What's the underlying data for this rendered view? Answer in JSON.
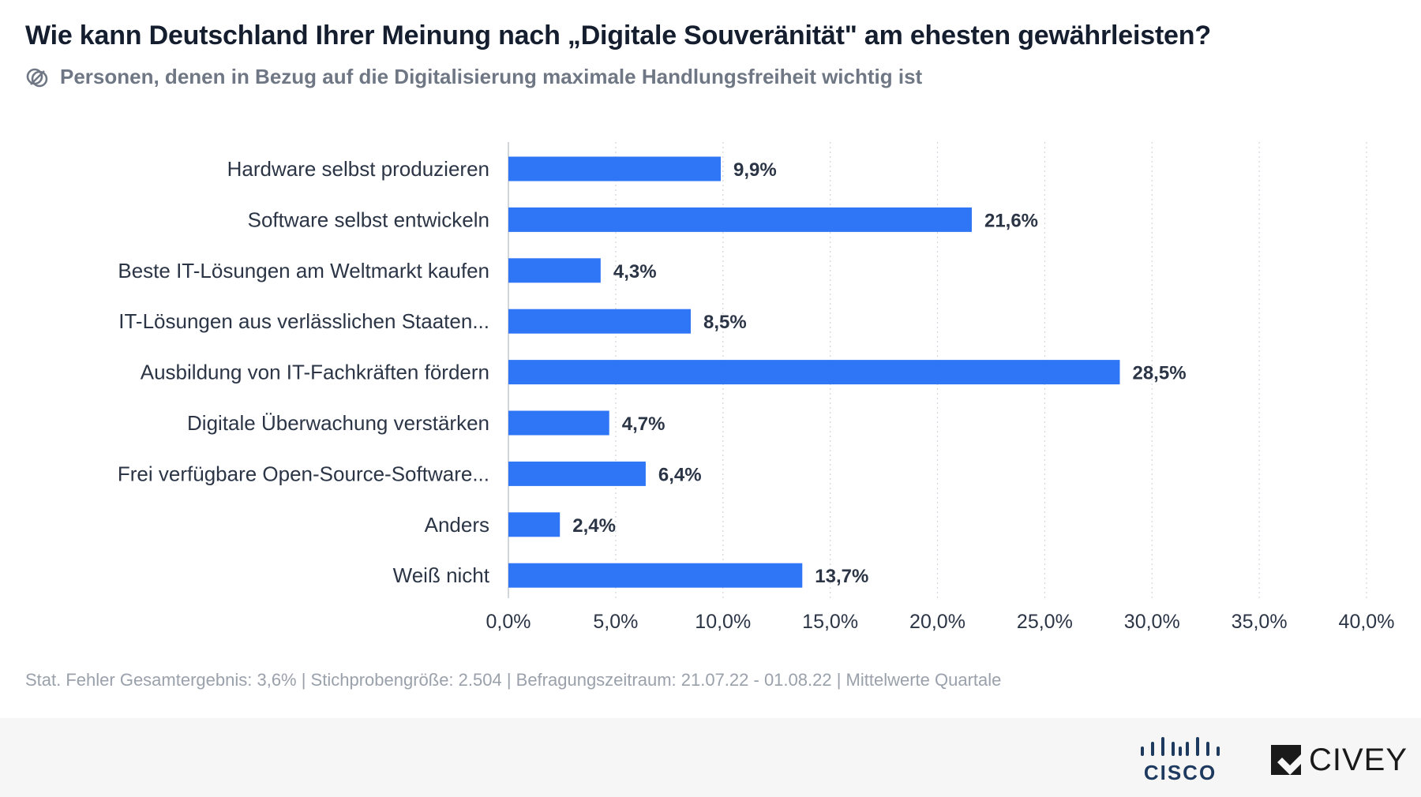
{
  "title": "Wie kann Deutschland Ihrer Meinung nach „Digitale Souveränität\" am ehesten gewährleisten?",
  "subtitle": "Personen, denen in Bezug auf die Digitalisierung maximale Handlungsfreiheit wichtig ist",
  "subtitle_icon": "filter-circles-icon",
  "footnote": "Stat. Fehler Gesamtergebnis: 3,6% | Stichprobengröße: 2.504 | Befragungszeitraum: 21.07.22 - 01.08.22 | Mittelwerte Quartale",
  "logos": {
    "cisco": "CISCO",
    "civey": "CIVEY"
  },
  "colors": {
    "bar": "#2f76f6",
    "grid": "#d3d6dc",
    "axis_text": "#2b3546",
    "label_text": "#2b3546"
  },
  "chart_data": {
    "type": "bar",
    "orientation": "horizontal",
    "categories": [
      "Hardware selbst produzieren",
      "Software selbst entwickeln",
      "Beste IT-Lösungen am Weltmarkt kaufen",
      "IT-Lösungen aus verlässlichen Staaten...",
      "Ausbildung von IT-Fachkräften fördern",
      "Digitale Überwachung verstärken",
      "Frei verfügbare Open-Source-Software...",
      "Anders",
      "Weiß nicht"
    ],
    "values": [
      9.9,
      21.6,
      4.3,
      8.5,
      28.5,
      4.7,
      6.4,
      2.4,
      13.7
    ],
    "value_labels": [
      "9,9%",
      "21,6%",
      "4,3%",
      "8,5%",
      "28,5%",
      "4,7%",
      "6,4%",
      "2,4%",
      "13,7%"
    ],
    "xlim": [
      0,
      40
    ],
    "x_ticks": [
      0,
      5,
      10,
      15,
      20,
      25,
      30,
      35,
      40
    ],
    "x_tick_labels": [
      "0,0%",
      "5,0%",
      "10,0%",
      "15,0%",
      "20,0%",
      "25,0%",
      "30,0%",
      "35,0%",
      "40,0%"
    ],
    "grid": "vertical-dotted"
  }
}
